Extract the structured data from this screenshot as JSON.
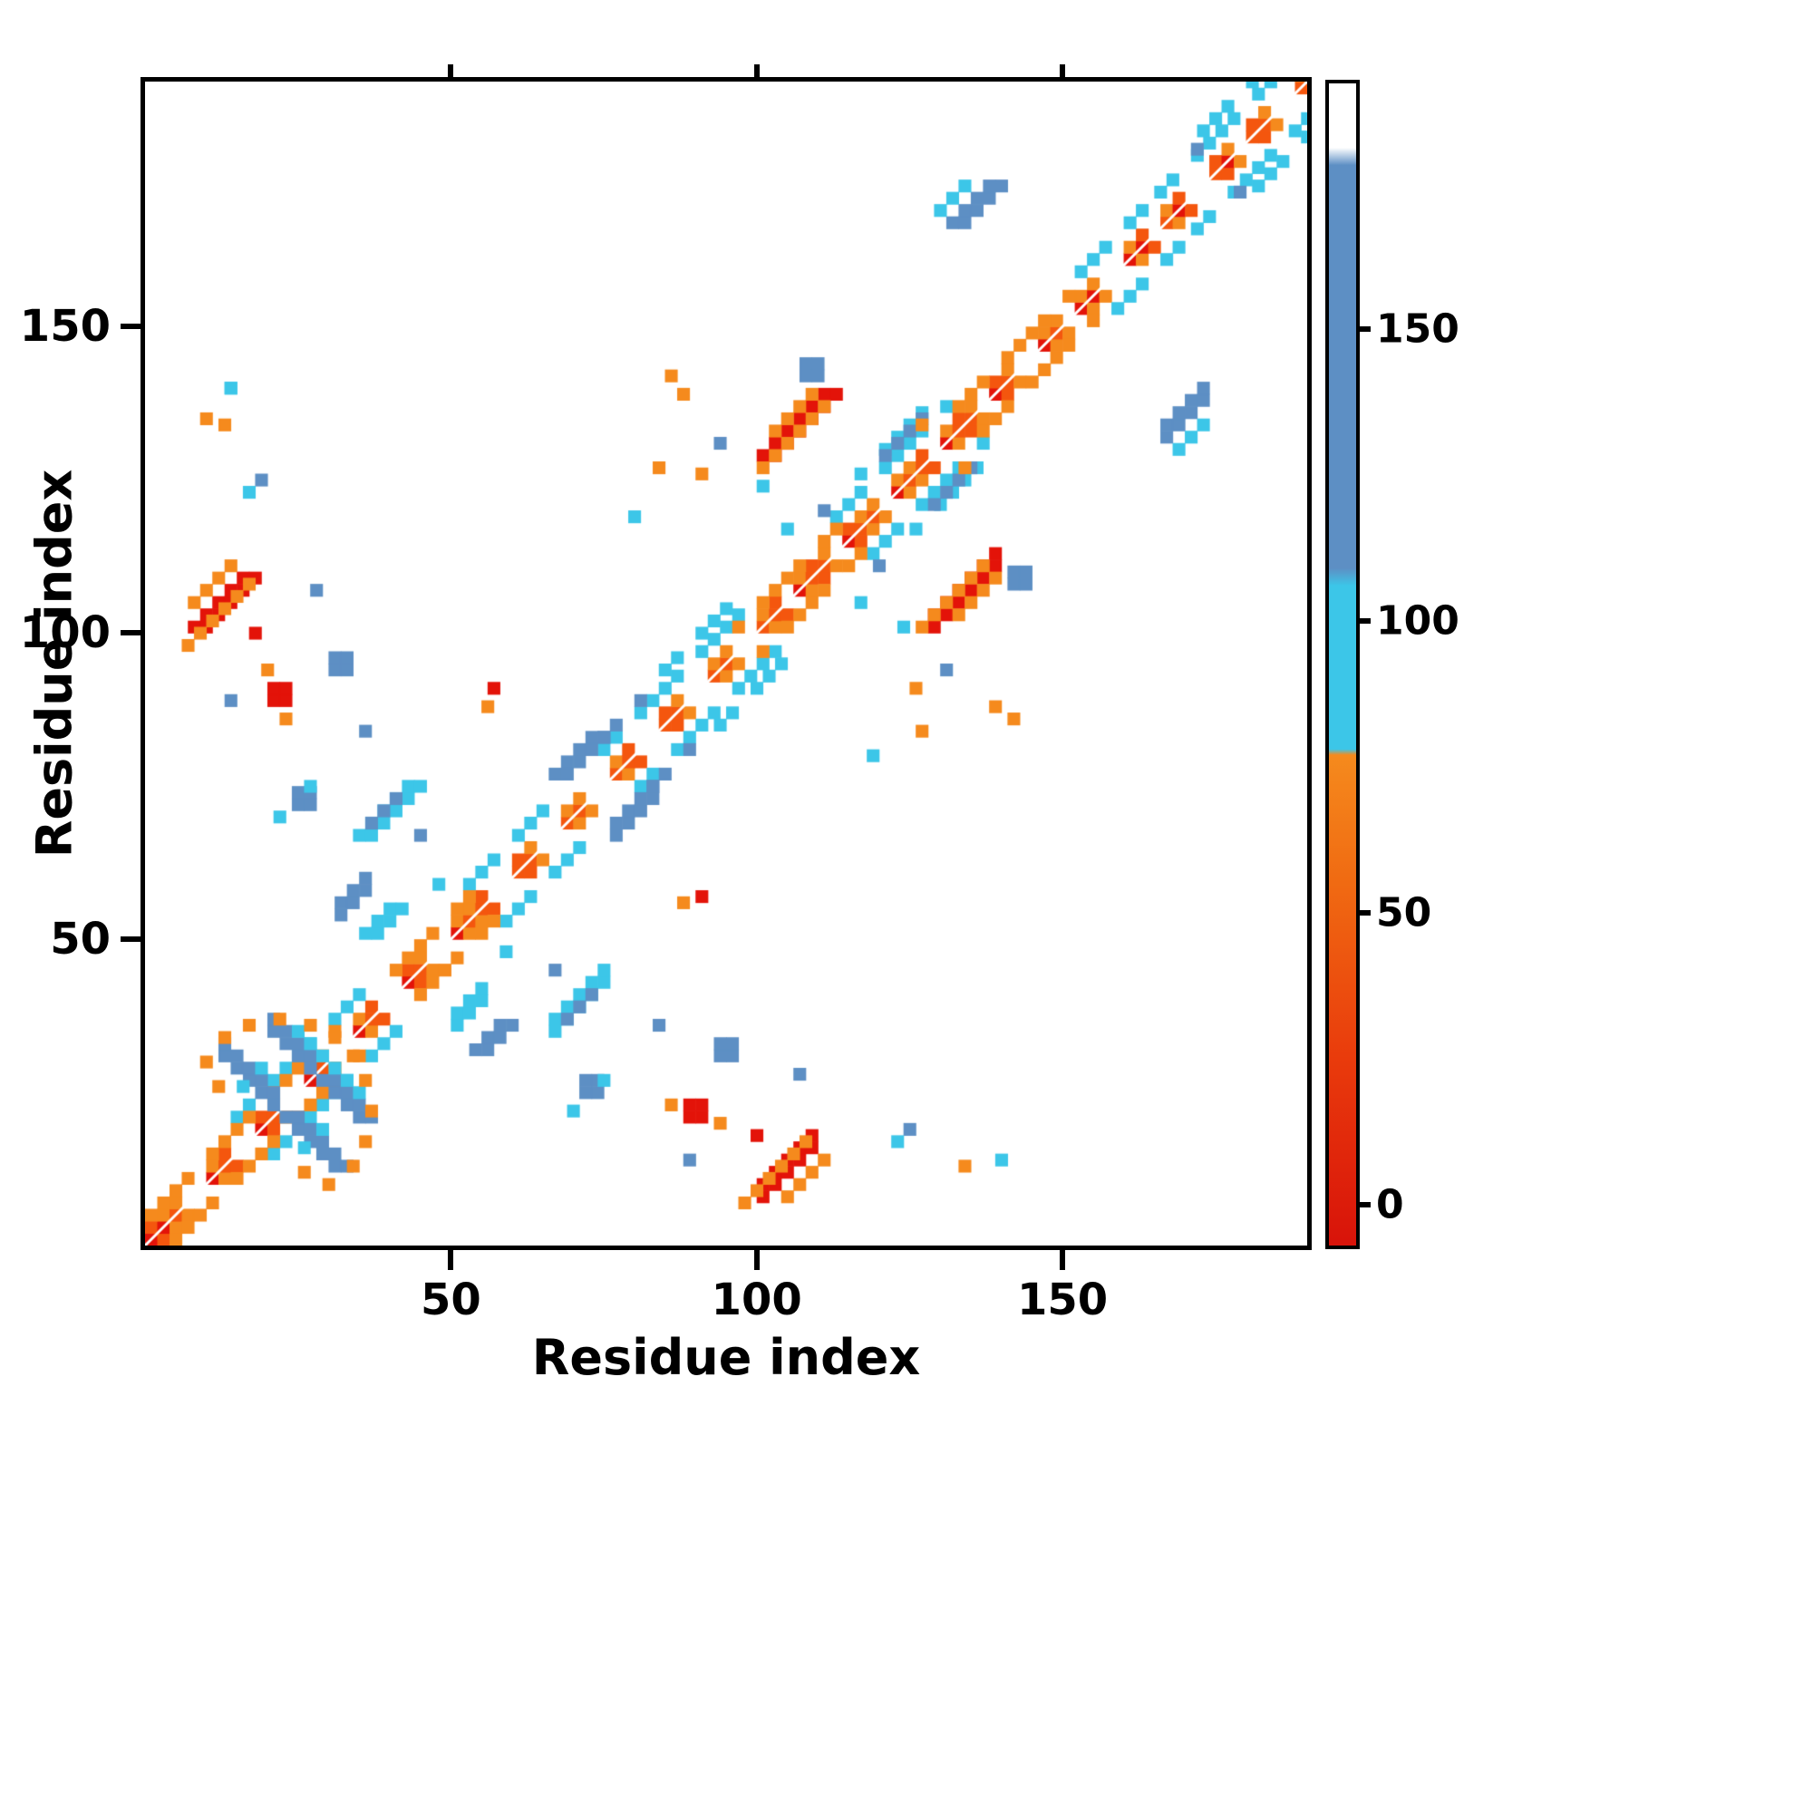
{
  "chart_data": {
    "type": "heatmap",
    "title": "",
    "xlabel": "Residue index",
    "ylabel": "Residue index",
    "xlim": [
      0,
      190
    ],
    "ylim": [
      0,
      190
    ],
    "xticks": [
      50,
      100,
      150
    ],
    "yticks": [
      50,
      100,
      150
    ],
    "grid": false,
    "cell": 2,
    "palette": {
      "red": "#e31309",
      "orangered": "#f4560e",
      "orange": "#f58a1d",
      "cyan": "#3cc6e8",
      "blue": "#5d8fc4",
      "background": "#ffffff"
    },
    "diagonal": {
      "from": 0,
      "to": 188,
      "core_colors": [
        "red",
        "orangered"
      ],
      "gaps": [
        7,
        15,
        23,
        31,
        39,
        47,
        57,
        65,
        73,
        81,
        89,
        97,
        104,
        112,
        120,
        128,
        136,
        143,
        150,
        157,
        164,
        171,
        178,
        185
      ]
    },
    "flanks": [
      {
        "from": 14,
        "to": 34,
        "off": 6,
        "c": "cyan"
      },
      {
        "from": 52,
        "to": 64,
        "off": 6,
        "c": "cyan"
      },
      {
        "from": 74,
        "to": 96,
        "off": 6,
        "c": "cyan"
      },
      {
        "from": 84,
        "to": 94,
        "off": 9,
        "c": "cyan"
      },
      {
        "from": 112,
        "to": 131,
        "off": 6,
        "c": "cyan"
      },
      {
        "from": 116,
        "to": 128,
        "off": 9,
        "c": "cyan"
      },
      {
        "from": 152,
        "to": 163,
        "off": 6,
        "c": "cyan"
      },
      {
        "from": 165,
        "to": 187,
        "off": 6,
        "c": "cyan"
      },
      {
        "from": 172,
        "to": 187,
        "off": 9,
        "c": "cyan"
      },
      {
        "from": 74,
        "to": 80,
        "off": 8,
        "c": "blue"
      },
      {
        "from": 120,
        "to": 128,
        "off": 8,
        "c": "blue"
      },
      {
        "from": 0,
        "to": 14,
        "off": 4,
        "c": "orange"
      },
      {
        "from": 16,
        "to": 30,
        "off": 4,
        "c": "orange"
      },
      {
        "from": 40,
        "to": 52,
        "off": 4,
        "c": "orange"
      },
      {
        "from": 96,
        "to": 112,
        "off": 4,
        "c": "orange"
      },
      {
        "from": 132,
        "to": 150,
        "off": 4,
        "c": "orange"
      }
    ],
    "clusters": [
      {
        "t": "diag",
        "x": 100,
        "y": 7,
        "len": 5,
        "w": 2,
        "c": "red",
        "m": true
      },
      {
        "t": "diag",
        "x": 97,
        "y": 6,
        "len": 6,
        "w": 1,
        "c": "orange",
        "m": true
      },
      {
        "t": "diag",
        "x": 104,
        "y": 7,
        "len": 4,
        "w": 1,
        "c": "orange",
        "m": true
      },
      {
        "t": "diag",
        "x": 128,
        "y": 100,
        "len": 6,
        "w": 2,
        "c": "red",
        "m": true
      },
      {
        "t": "diag",
        "x": 126,
        "y": 100,
        "len": 6,
        "w": 1,
        "c": "orange",
        "m": true
      },
      {
        "t": "diag",
        "x": 132,
        "y": 102,
        "len": 4,
        "w": 1,
        "c": "orange",
        "m": true
      },
      {
        "t": "diag",
        "x": 166,
        "y": 131,
        "len": 4,
        "w": 2,
        "c": "blue",
        "m": true
      },
      {
        "t": "diag",
        "x": 168,
        "y": 129,
        "len": 3,
        "w": 1,
        "c": "cyan",
        "m": true
      },
      {
        "t": "dot",
        "x": 133,
        "y": 126,
        "c": "orange",
        "m": true
      },
      {
        "t": "diag",
        "x": 66,
        "y": 34,
        "len": 5,
        "w": 2,
        "c": "cyan",
        "m": true
      },
      {
        "t": "diag",
        "x": 68,
        "y": 36,
        "len": 3,
        "w": 1,
        "c": "blue",
        "m": true
      },
      {
        "t": "diag",
        "x": 50,
        "y": 35,
        "len": 3,
        "w": 2,
        "c": "cyan",
        "m": true
      },
      {
        "t": "diag",
        "x": 31,
        "y": 53,
        "len": 3,
        "w": 2,
        "c": "blue",
        "m": true
      },
      {
        "t": "anti",
        "x": 12,
        "y": 30,
        "len": 5,
        "w": 2,
        "c": "blue",
        "m": true
      },
      {
        "t": "anti",
        "x": 20,
        "y": 34,
        "len": 4,
        "w": 2,
        "c": "blue",
        "m": true
      },
      {
        "t": "anti",
        "x": 24,
        "y": 34,
        "len": 3,
        "w": 1,
        "c": "cyan",
        "m": true
      },
      {
        "t": "dot",
        "x": 11,
        "y": 25,
        "c": "orange",
        "m": true
      },
      {
        "t": "dot",
        "x": 9,
        "y": 29,
        "c": "orange",
        "m": true
      },
      {
        "t": "dot",
        "x": 12,
        "y": 33,
        "c": "orange",
        "m": true
      },
      {
        "t": "dot",
        "x": 16,
        "y": 35,
        "c": "orange",
        "m": true
      },
      {
        "t": "dot",
        "x": 21,
        "y": 36,
        "c": "orange",
        "m": true
      },
      {
        "t": "dot",
        "x": 26,
        "y": 35,
        "c": "orange",
        "m": true
      },
      {
        "t": "dot",
        "x": 30,
        "y": 33,
        "c": "orange",
        "m": true
      },
      {
        "t": "dot",
        "x": 18,
        "y": 28,
        "c": "cyan",
        "m": true
      },
      {
        "t": "dot",
        "x": 15,
        "y": 25,
        "c": "cyan",
        "m": true
      },
      {
        "t": "diag",
        "x": 76,
        "y": 66,
        "len": 4,
        "w": 2,
        "c": "blue",
        "m": true
      },
      {
        "t": "dot",
        "x": 87,
        "y": 55,
        "c": "orange",
        "m": true
      },
      {
        "t": "dot",
        "x": 90,
        "y": 56,
        "c": "red",
        "m": true
      },
      {
        "t": "dot",
        "x": 58,
        "y": 47,
        "c": "cyan",
        "m": true
      },
      {
        "t": "dot",
        "x": 71,
        "y": 24,
        "s": 2,
        "c": "blue",
        "m": true
      },
      {
        "t": "dot",
        "x": 74,
        "y": 26,
        "c": "cyan",
        "m": true
      },
      {
        "t": "dot",
        "x": 69,
        "y": 21,
        "c": "cyan",
        "m": true
      },
      {
        "t": "dot",
        "x": 88,
        "y": 20,
        "s": 2,
        "c": "red",
        "m": true
      },
      {
        "t": "dot",
        "x": 85,
        "y": 22,
        "c": "orange",
        "m": true
      },
      {
        "t": "dot",
        "x": 106,
        "y": 27,
        "c": "blue",
        "m": true
      },
      {
        "t": "dot",
        "x": 133,
        "y": 12,
        "c": "orange",
        "m": true
      },
      {
        "t": "dot",
        "x": 139,
        "y": 13,
        "c": "cyan",
        "m": true
      },
      {
        "t": "dot",
        "x": 124,
        "y": 18,
        "c": "blue",
        "m": true
      },
      {
        "t": "dot",
        "x": 122,
        "y": 16,
        "c": "cyan",
        "m": true
      },
      {
        "t": "dot",
        "x": 119,
        "y": 110,
        "c": "blue",
        "m": true
      },
      {
        "t": "dot",
        "x": 116,
        "y": 104,
        "c": "cyan",
        "m": true
      },
      {
        "t": "dot",
        "x": 138,
        "y": 87,
        "c": "orange",
        "m": true
      },
      {
        "t": "dot",
        "x": 141,
        "y": 85,
        "c": "orange",
        "m": true
      },
      {
        "t": "dot",
        "x": 130,
        "y": 93,
        "c": "blue",
        "m": true
      },
      {
        "t": "dot",
        "x": 125,
        "y": 90,
        "c": "orange",
        "m": true
      },
      {
        "t": "dot",
        "x": 107,
        "y": 141,
        "s": 2,
        "c": "blue",
        "m": true
      },
      {
        "t": "dot",
        "x": 100,
        "y": 123,
        "c": "cyan",
        "m": true
      },
      {
        "t": "dot",
        "x": 83,
        "y": 126,
        "c": "orange",
        "m": true
      },
      {
        "t": "dot",
        "x": 79,
        "y": 118,
        "c": "cyan",
        "m": true
      },
      {
        "t": "dot",
        "x": 178,
        "y": 171,
        "c": "blue",
        "m": true
      },
      {
        "t": "dot",
        "x": 35,
        "y": 83,
        "c": "blue",
        "m": true
      },
      {
        "t": "dot",
        "x": 30,
        "y": 93,
        "s": 2,
        "c": "blue",
        "m": true
      },
      {
        "t": "dot",
        "x": 19,
        "y": 93,
        "c": "orange",
        "m": true
      },
      {
        "t": "dot",
        "x": 13,
        "y": 88,
        "c": "blue",
        "m": true
      },
      {
        "t": "dot",
        "x": 17,
        "y": 99,
        "c": "red",
        "m": true
      },
      {
        "t": "dot",
        "x": 44,
        "y": 66,
        "c": "blue",
        "m": true
      },
      {
        "t": "dot",
        "x": 13,
        "y": 139,
        "c": "cyan",
        "m": false
      },
      {
        "t": "dot",
        "x": 9,
        "y": 134,
        "c": "orange",
        "m": false
      }
    ],
    "colorbar": {
      "lim": [
        -7,
        192
      ],
      "ticks": [
        0,
        50,
        100,
        150
      ],
      "stops": [
        {
          "v": -7,
          "c": "#d8130a"
        },
        {
          "v": 25,
          "c": "#e93b0c"
        },
        {
          "v": 55,
          "c": "#f06a12"
        },
        {
          "v": 77,
          "c": "#f58a1d"
        },
        {
          "v": 78,
          "c": "#3cc6e8"
        },
        {
          "v": 106,
          "c": "#3cc6e8"
        },
        {
          "v": 109,
          "c": "#5d8fc4"
        },
        {
          "v": 178,
          "c": "#5d8fc4"
        },
        {
          "v": 181,
          "c": "#ffffff"
        },
        {
          "v": 192,
          "c": "#ffffff"
        }
      ]
    }
  }
}
